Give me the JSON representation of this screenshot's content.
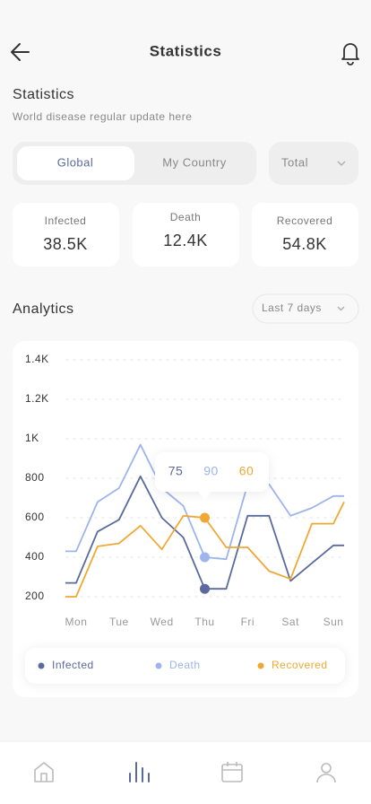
{
  "header": {
    "title": "Statistics"
  },
  "intro": {
    "title": "Statistics",
    "subtitle": "World disease regular update here"
  },
  "tabs": [
    "Global",
    "My Country"
  ],
  "filter": "Total",
  "cards": [
    {
      "label": "Infected",
      "value": "38.5K"
    },
    {
      "label": "Death",
      "value": "12.4K"
    },
    {
      "label": "Recovered",
      "value": "54.8K"
    }
  ],
  "analytics": {
    "title": "Analytics",
    "range": "Last 7 days"
  },
  "chart_data": {
    "type": "line",
    "x": [
      -0.25,
      0,
      0.5,
      1,
      1.5,
      2,
      2.5,
      3,
      3.5,
      4,
      4.5,
      5,
      5.5,
      6,
      6.25
    ],
    "xlim": [
      -0.25,
      6.25
    ],
    "xticks": [
      {
        "value": 0,
        "label": "Mon"
      },
      {
        "value": 1,
        "label": "Tue"
      },
      {
        "value": 2,
        "label": "Wed"
      },
      {
        "value": 3,
        "label": "Thu"
      },
      {
        "value": 4,
        "label": "Fri"
      },
      {
        "value": 5,
        "label": "Sat"
      },
      {
        "value": 6,
        "label": "Sun"
      }
    ],
    "ylim": [
      200,
      1400
    ],
    "yticks": [
      200,
      400,
      600,
      800,
      {
        "value": 1000,
        "label": "1K"
      },
      {
        "value": 1200,
        "label": "1.2K"
      },
      {
        "value": 1400,
        "label": "1.4K"
      }
    ],
    "grid": true,
    "legend": "bottom",
    "series": [
      {
        "name": "Infected",
        "color": "#5a6a9c",
        "values": [
          270,
          270,
          530,
          590,
          810,
          600,
          500,
          240,
          240,
          610,
          610,
          280,
          370,
          460,
          460
        ]
      },
      {
        "name": "Death",
        "color": "#9db4ec",
        "values": [
          430,
          430,
          680,
          750,
          970,
          750,
          660,
          400,
          390,
          770,
          770,
          610,
          650,
          710,
          710
        ]
      },
      {
        "name": "Recovered",
        "color": "#efa833",
        "values": [
          200,
          200,
          455,
          470,
          560,
          440,
          610,
          600,
          450,
          450,
          330,
          290,
          570,
          570,
          680
        ]
      }
    ],
    "tooltip": {
      "x": 3,
      "values": [
        75,
        90,
        60
      ]
    }
  }
}
